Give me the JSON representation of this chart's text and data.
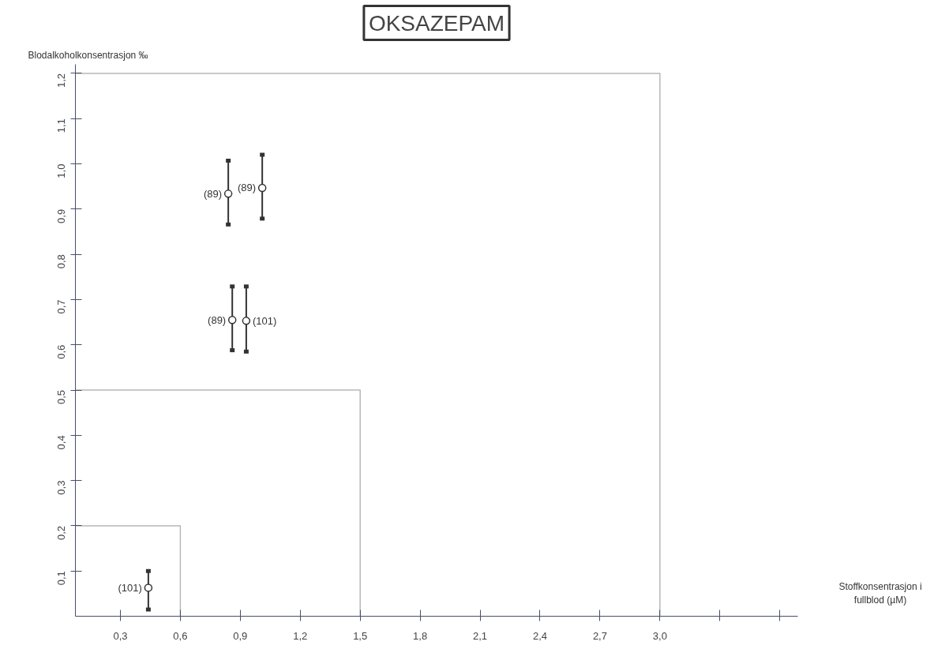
{
  "chart_data": {
    "type": "scatter",
    "title": "OKSAZEPAM",
    "xlabel": "Stoffkonsentrasjon i fullblod (µM)",
    "ylabel": "Blodalkoholkonsentrasjon ‰",
    "xlim": [
      0.075,
      3.69
    ],
    "ylim": [
      0,
      1.22
    ],
    "xticks": [
      {
        "value": 0.3,
        "label": "0,3"
      },
      {
        "value": 0.6,
        "label": "0,6"
      },
      {
        "value": 0.9,
        "label": "0,9"
      },
      {
        "value": 1.2,
        "label": "1,2"
      },
      {
        "value": 1.5,
        "label": "1,5"
      },
      {
        "value": 1.8,
        "label": "1,8"
      },
      {
        "value": 2.1,
        "label": "2,1"
      },
      {
        "value": 2.4,
        "label": "2,4"
      },
      {
        "value": 2.7,
        "label": "2,7"
      },
      {
        "value": 3.0,
        "label": "3,0"
      },
      {
        "value": 3.3,
        "label": null
      },
      {
        "value": 3.6,
        "label": null
      }
    ],
    "yticks": [
      {
        "value": 0.1,
        "label": "0,1"
      },
      {
        "value": 0.2,
        "label": "0,2"
      },
      {
        "value": 0.3,
        "label": "0,3"
      },
      {
        "value": 0.4,
        "label": "0,4"
      },
      {
        "value": 0.5,
        "label": "0,5"
      },
      {
        "value": 0.6,
        "label": "0,6"
      },
      {
        "value": 0.7,
        "label": "0,7"
      },
      {
        "value": 0.8,
        "label": "0,8"
      },
      {
        "value": 0.9,
        "label": "0,9"
      },
      {
        "value": 1.0,
        "label": "1,0"
      },
      {
        "value": 1.1,
        "label": "1,1"
      },
      {
        "value": 1.2,
        "label": "1,2"
      }
    ],
    "grid": false,
    "marker": "circle",
    "series": [
      {
        "color": "#333333",
        "x": [
          0.44,
          0.84,
          1.01,
          0.86,
          0.93
        ],
        "values": [
          0.063,
          0.934,
          0.947,
          0.655,
          0.653
        ],
        "errors": [
          [
            0.015,
            0.1
          ],
          [
            0.866,
            1.007
          ],
          [
            0.879,
            1.02
          ],
          [
            0.588,
            0.729
          ],
          [
            0.585,
            0.729
          ]
        ]
      },
      {
        "type": "line",
        "color": "#b8b8b8",
        "marker": "none",
        "x": [
          0.075,
          0.6,
          0.6
        ],
        "values": [
          0.2,
          0.2,
          0
        ]
      },
      {
        "type": "line",
        "color": "#b8b8b8",
        "marker": "none",
        "x": [
          0.075,
          1.5,
          1.5
        ],
        "values": [
          0.5,
          0.5,
          0
        ]
      },
      {
        "type": "line",
        "color": "#b8b8b8",
        "marker": "none",
        "x": [
          0.075,
          3.0,
          3.0
        ],
        "values": [
          1.2,
          1.2,
          0
        ]
      }
    ],
    "annotations": [
      {
        "text": "(101)",
        "x": 0.44,
        "y": 0.063
      },
      {
        "text": "(89)",
        "x": 0.84,
        "y": 0.934
      },
      {
        "text": "(89)",
        "x": 1.01,
        "y": 0.947
      },
      {
        "text": "(89)",
        "x": 0.86,
        "y": 0.655
      },
      {
        "text": "(101)",
        "x": 0.93,
        "y": 0.653
      }
    ]
  }
}
